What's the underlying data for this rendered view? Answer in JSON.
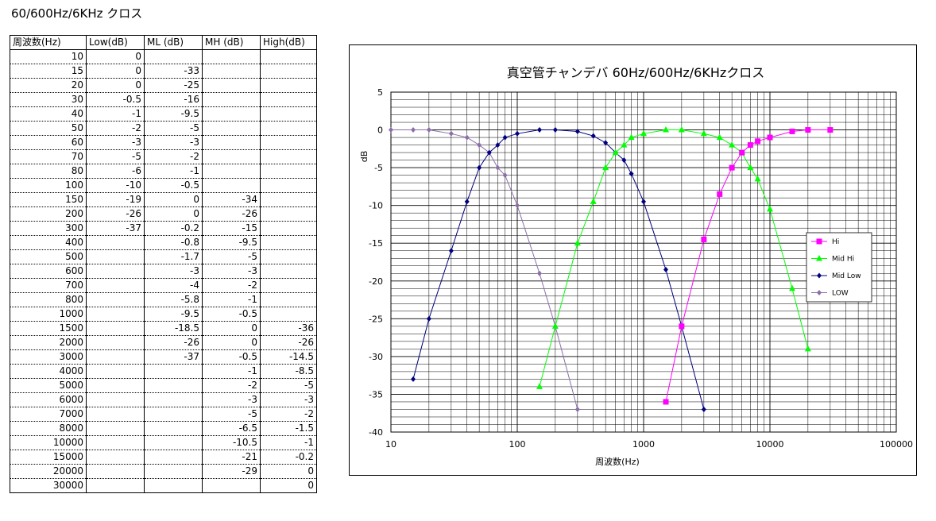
{
  "sheet_title": "60/600Hz/6KHz クロス",
  "table": {
    "headers": [
      "周波数(Hz)",
      "Low(dB)",
      "ML (dB)",
      "MH (dB)",
      "High(dB)"
    ],
    "rows": [
      [
        "10",
        "0",
        "",
        "",
        ""
      ],
      [
        "15",
        "0",
        "-33",
        "",
        ""
      ],
      [
        "20",
        "0",
        "-25",
        "",
        ""
      ],
      [
        "30",
        "-0.5",
        "-16",
        "",
        ""
      ],
      [
        "40",
        "-1",
        "-9.5",
        "",
        ""
      ],
      [
        "50",
        "-2",
        "-5",
        "",
        ""
      ],
      [
        "60",
        "-3",
        "-3",
        "",
        ""
      ],
      [
        "70",
        "-5",
        "-2",
        "",
        ""
      ],
      [
        "80",
        "-6",
        "-1",
        "",
        ""
      ],
      [
        "100",
        "-10",
        "-0.5",
        "",
        ""
      ],
      [
        "150",
        "-19",
        "0",
        "-34",
        ""
      ],
      [
        "200",
        "-26",
        "0",
        "-26",
        ""
      ],
      [
        "300",
        "-37",
        "-0.2",
        "-15",
        ""
      ],
      [
        "400",
        "",
        "-0.8",
        "-9.5",
        ""
      ],
      [
        "500",
        "",
        "-1.7",
        "-5",
        ""
      ],
      [
        "600",
        "",
        "-3",
        "-3",
        ""
      ],
      [
        "700",
        "",
        "-4",
        "-2",
        ""
      ],
      [
        "800",
        "",
        "-5.8",
        "-1",
        ""
      ],
      [
        "1000",
        "",
        "-9.5",
        "-0.5",
        ""
      ],
      [
        "1500",
        "",
        "-18.5",
        "0",
        "-36"
      ],
      [
        "2000",
        "",
        "-26",
        "0",
        "-26"
      ],
      [
        "3000",
        "",
        "-37",
        "-0.5",
        "-14.5"
      ],
      [
        "4000",
        "",
        "",
        "-1",
        "-8.5"
      ],
      [
        "5000",
        "",
        "",
        "-2",
        "-5"
      ],
      [
        "6000",
        "",
        "",
        "-3",
        "-3"
      ],
      [
        "7000",
        "",
        "",
        "-5",
        "-2"
      ],
      [
        "8000",
        "",
        "",
        "-6.5",
        "-1.5"
      ],
      [
        "10000",
        "",
        "",
        "-10.5",
        "-1"
      ],
      [
        "15000",
        "",
        "",
        "-21",
        "-0.2"
      ],
      [
        "20000",
        "",
        "",
        "-29",
        "0"
      ],
      [
        "30000",
        "",
        "",
        "",
        "0"
      ]
    ]
  },
  "chart_data": {
    "type": "line",
    "title": "真空管チャンデバ 60Hz/600Hz/6KHzクロス",
    "xlabel": "周波数(Hz)",
    "ylabel": "dB",
    "xscale": "log",
    "xlim": [
      10,
      100000
    ],
    "ylim": [
      -40,
      5
    ],
    "y_ticks": [
      5,
      0,
      -5,
      -10,
      -15,
      -20,
      -25,
      -30,
      -35,
      -40
    ],
    "x_ticks": [
      10,
      100,
      1000,
      10000,
      100000
    ],
    "x_tick_labels": [
      "10",
      "100",
      "1000",
      "10000",
      "100000"
    ],
    "grid": true,
    "legend_position": "right",
    "series": [
      {
        "name": "Hi",
        "color": "#FF00FF",
        "marker": "square",
        "x": [
          1500,
          2000,
          3000,
          4000,
          5000,
          6000,
          7000,
          8000,
          10000,
          15000,
          20000,
          30000
        ],
        "y": [
          -36,
          -26,
          -14.5,
          -8.5,
          -5,
          -3,
          -2,
          -1.5,
          -1,
          -0.2,
          0,
          0
        ]
      },
      {
        "name": "Mid Hi",
        "color": "#00FF00",
        "marker": "triangle",
        "x": [
          150,
          200,
          300,
          400,
          500,
          600,
          700,
          800,
          1000,
          1500,
          2000,
          3000,
          4000,
          5000,
          6000,
          7000,
          8000,
          10000,
          15000,
          20000
        ],
        "y": [
          -34,
          -26,
          -15,
          -9.5,
          -5,
          -3,
          -2,
          -1,
          -0.5,
          0,
          0,
          -0.5,
          -1,
          -2,
          -3,
          -5,
          -6.5,
          -10.5,
          -21,
          -29
        ]
      },
      {
        "name": "Mid Low",
        "color": "#000080",
        "marker": "diamond",
        "x": [
          15,
          20,
          30,
          40,
          50,
          60,
          70,
          80,
          100,
          150,
          200,
          300,
          400,
          500,
          600,
          700,
          800,
          1000,
          1500,
          2000,
          3000
        ],
        "y": [
          -33,
          -25,
          -16,
          -9.5,
          -5,
          -3,
          -2,
          -1,
          -0.5,
          0,
          0,
          -0.2,
          -0.8,
          -1.7,
          -3,
          -4,
          -5.8,
          -9.5,
          -18.5,
          -26,
          -37
        ]
      },
      {
        "name": "LOW",
        "color": "#8B6FA8",
        "marker": "diamond",
        "x": [
          10,
          15,
          20,
          30,
          40,
          50,
          60,
          70,
          80,
          100,
          150,
          200,
          300
        ],
        "y": [
          0,
          0,
          0,
          -0.5,
          -1,
          -2,
          -3,
          -5,
          -6,
          -10,
          -19,
          -26,
          -37
        ]
      }
    ]
  }
}
